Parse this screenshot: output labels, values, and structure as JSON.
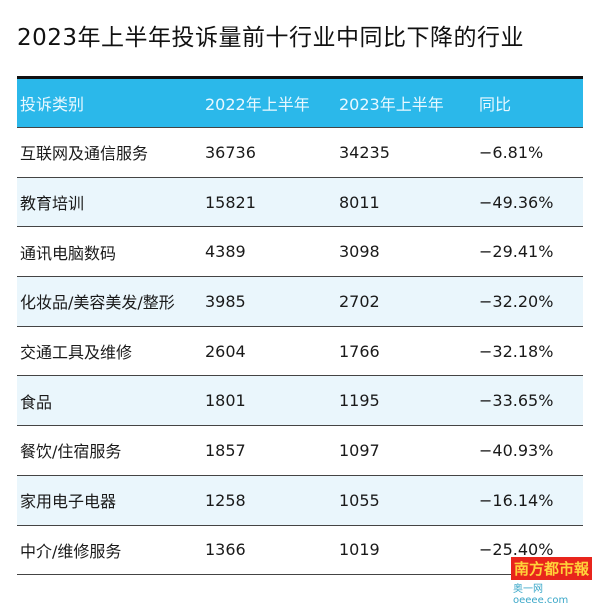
{
  "title": "2023年上半年投诉量前十行业中同比下降的行业",
  "table": {
    "headers": [
      "投诉类别",
      "2022年上半年",
      "2023年上半年",
      "同比"
    ],
    "rows": [
      [
        "互联网及通信服务",
        "36736",
        "34235",
        "−6.81%"
      ],
      [
        "教育培训",
        "15821",
        "8011",
        "−49.36%"
      ],
      [
        "通讯电脑数码",
        "4389",
        "3098",
        "−29.41%"
      ],
      [
        "化妆品/美容美发/整形",
        "3985",
        "2702",
        "−32.20%"
      ],
      [
        "交通工具及维修",
        "2604",
        "1766",
        "−32.18%"
      ],
      [
        "食品",
        "1801",
        "1195",
        "−33.65%"
      ],
      [
        "餐饮/住宿服务",
        "1857",
        "1097",
        "−40.93%"
      ],
      [
        "家用电子电器",
        "1258",
        "1055",
        "−16.14%"
      ],
      [
        "中介/维修服务",
        "1366",
        "1019",
        "−25.40%"
      ]
    ]
  },
  "watermark": {
    "logo": "南方都市報",
    "site": "奥一网 oeeee.com"
  },
  "colors": {
    "header_bg": "#2bb8ea",
    "alt_row_bg": "#eaf6fc"
  }
}
